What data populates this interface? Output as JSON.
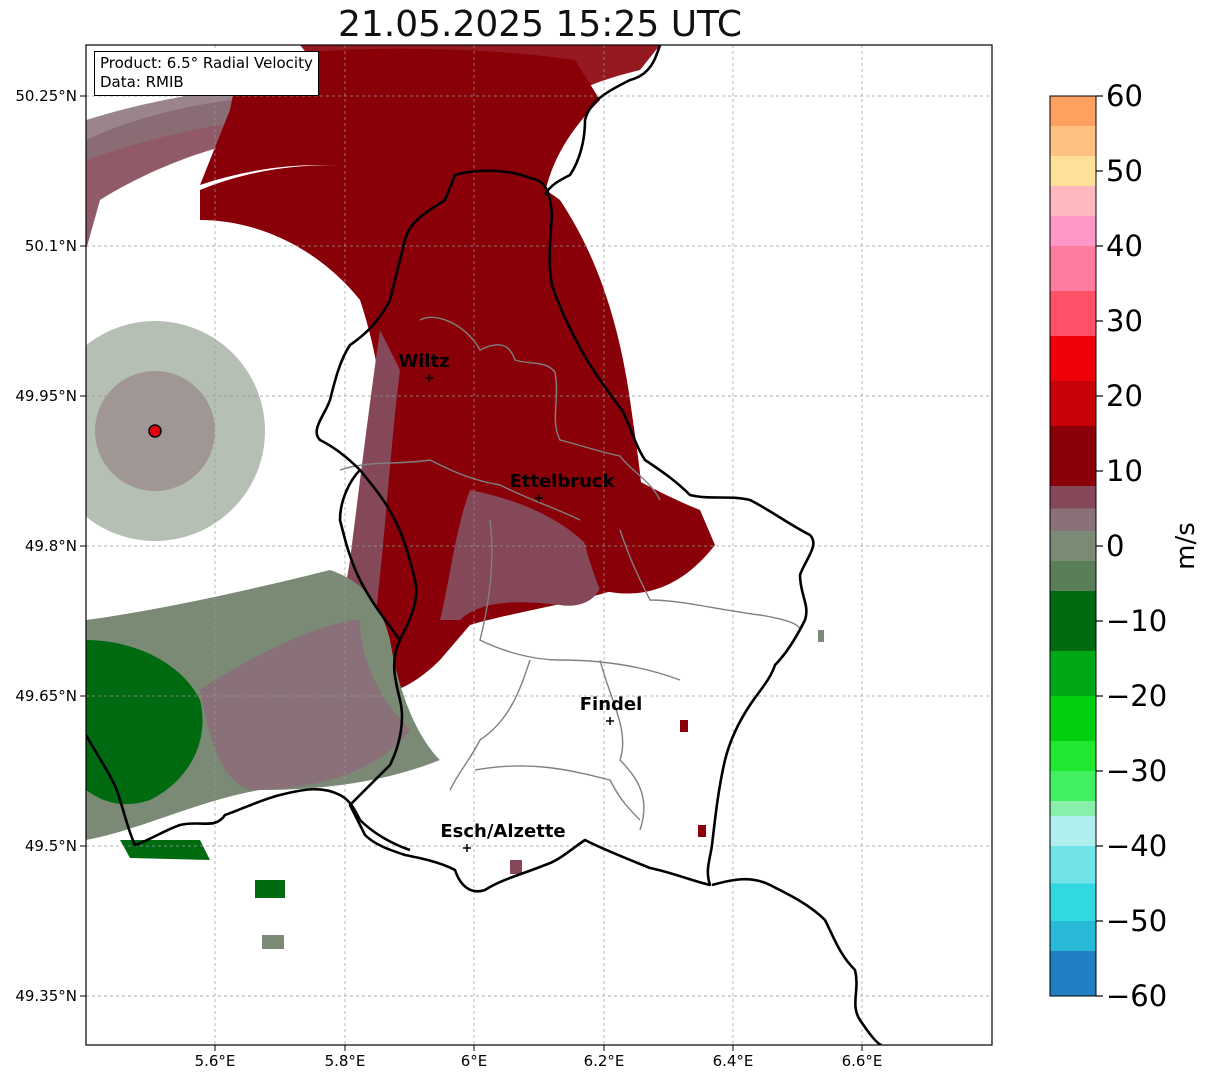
{
  "title": "21.05.2025 15:25 UTC",
  "info": {
    "product": "Product: 6.5° Radial Velocity",
    "source": "Data: RMIB"
  },
  "axes": {
    "lat_ticks": [
      "50.25°N",
      "50.1°N",
      "49.95°N",
      "49.8°N",
      "49.65°N",
      "49.5°N",
      "49.35°N"
    ],
    "lon_ticks": [
      "5.6°E",
      "5.8°E",
      "6°E",
      "6.2°E",
      "6.4°E",
      "6.6°E"
    ],
    "lon_range": [
      5.4,
      6.8
    ],
    "lat_range": [
      49.3,
      50.3
    ]
  },
  "cities": [
    {
      "name": "Wiltz",
      "lon": 5.935,
      "lat": 49.967
    },
    {
      "name": "Ettelbruck",
      "lon": 6.102,
      "lat": 49.847
    },
    {
      "name": "Findel",
      "lon": 6.21,
      "lat": 49.627
    },
    {
      "name": "Esch/Alzette",
      "lon": 5.99,
      "lat": 49.5
    }
  ],
  "radar_site": {
    "lon": 5.505,
    "lat": 49.914
  },
  "colorbar": {
    "label": "m/s",
    "ticks": [
      "60",
      "50",
      "40",
      "30",
      "20",
      "10",
      "0",
      "−10",
      "−20",
      "−30",
      "−40",
      "−50",
      "−60"
    ],
    "min": -60,
    "max": 60,
    "bands": [
      {
        "from": -60,
        "to": -54,
        "color": "#1f7fc2"
      },
      {
        "from": -54,
        "to": -50,
        "color": "#28b8d8"
      },
      {
        "from": -50,
        "to": -45,
        "color": "#30d8e0"
      },
      {
        "from": -45,
        "to": -40,
        "color": "#70e4e8"
      },
      {
        "from": -40,
        "to": -36,
        "color": "#b0eef0"
      },
      {
        "from": -36,
        "to": -34,
        "color": "#88f0a8"
      },
      {
        "from": -34,
        "to": -30,
        "color": "#40f060"
      },
      {
        "from": -30,
        "to": -26,
        "color": "#20e830"
      },
      {
        "from": -26,
        "to": -20,
        "color": "#00d010"
      },
      {
        "from": -20,
        "to": -14,
        "color": "#00a818"
      },
      {
        "from": -14,
        "to": -6,
        "color": "#006a10"
      },
      {
        "from": -6,
        "to": -2,
        "color": "#5a7e58"
      },
      {
        "from": -2,
        "to": 2,
        "color": "#7a8a74"
      },
      {
        "from": 2,
        "to": 5,
        "color": "#8a7078"
      },
      {
        "from": 5,
        "to": 8,
        "color": "#844858"
      },
      {
        "from": 8,
        "to": 16,
        "color": "#8a0008"
      },
      {
        "from": 16,
        "to": 22,
        "color": "#c80008"
      },
      {
        "from": 22,
        "to": 28,
        "color": "#f00008"
      },
      {
        "from": 28,
        "to": 34,
        "color": "#ff5068"
      },
      {
        "from": 34,
        "to": 40,
        "color": "#ff7ca0"
      },
      {
        "from": 40,
        "to": 44,
        "color": "#ff98c8"
      },
      {
        "from": 44,
        "to": 48,
        "color": "#ffb8c0"
      },
      {
        "from": 48,
        "to": 52,
        "color": "#ffe098"
      },
      {
        "from": 52,
        "to": 56,
        "color": "#ffc080"
      },
      {
        "from": 56,
        "to": 60,
        "color": "#ffa060"
      }
    ]
  }
}
